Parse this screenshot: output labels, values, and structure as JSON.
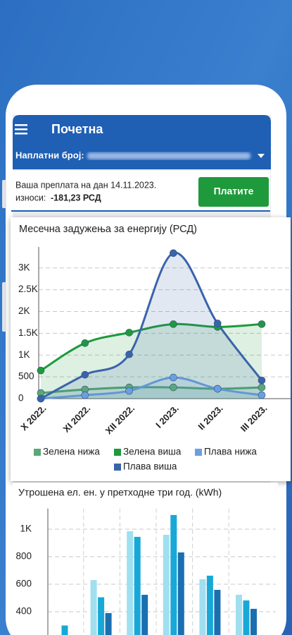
{
  "header": {
    "title": "Почетна",
    "account_label": "Наплатни број:"
  },
  "payment": {
    "text": "Ваша преплата на дан 14.11.2023.",
    "amount_label": "износи:",
    "amount": "-181,23  РСД",
    "button": "Платите"
  },
  "chart_data": [
    {
      "type": "line",
      "title": "Месечна задужења за енергију (РСД)",
      "categories": [
        "X 2022.",
        "XI 2022.",
        "XII 2022.",
        "I 2023.",
        "II 2023.",
        "III 2023."
      ],
      "series": [
        {
          "name": "Зелена нижа",
          "color": "#5aa878",
          "values": [
            129,
            210,
            258,
            258,
            226,
            258
          ]
        },
        {
          "name": "Зелена виша",
          "color": "#1e9a3c",
          "values": [
            645,
            1274,
            1516,
            1710,
            1645,
            1710
          ]
        },
        {
          "name": "Плава нижа",
          "color": "#6a9fe0",
          "values": [
            0,
            80,
            177,
            484,
            226,
            80
          ]
        },
        {
          "name": "Плава виша",
          "color": "#3a64aa",
          "values": [
            0,
            548,
            1016,
            3339,
            1726,
            419
          ]
        }
      ],
      "ylim": [
        0,
        3400
      ],
      "yticks": [
        0,
        500,
        {
          "value": 1000,
          "label": "1K"
        },
        {
          "value": 1500,
          "label": "1.5K"
        },
        {
          "value": 2000,
          "label": "2K"
        },
        {
          "value": 2500,
          "label": "2.5K"
        },
        {
          "value": 3000,
          "label": "3K"
        }
      ],
      "grid": true,
      "smooth": true
    },
    {
      "type": "bar",
      "title": "Утрошена ел. ен. у претходне три год. (kWh)",
      "categories": [
        null,
        null,
        null,
        null,
        null,
        null
      ],
      "series": [
        {
          "color": "#9fdff0",
          "values": [
            null,
            630,
            985,
            959,
            636,
            523
          ]
        },
        {
          "color": "#18a8d8",
          "values": [
            300,
            505,
            944,
            1103,
            662,
            482
          ]
        },
        {
          "color": "#1a6fb0",
          "values": [
            null,
            390,
            523,
            831,
            559,
            421
          ]
        }
      ],
      "ylim": [
        0,
        1150
      ],
      "yticks": [
        400,
        600,
        800,
        {
          "value": 1000,
          "label": "1K"
        }
      ],
      "grid": true
    }
  ]
}
